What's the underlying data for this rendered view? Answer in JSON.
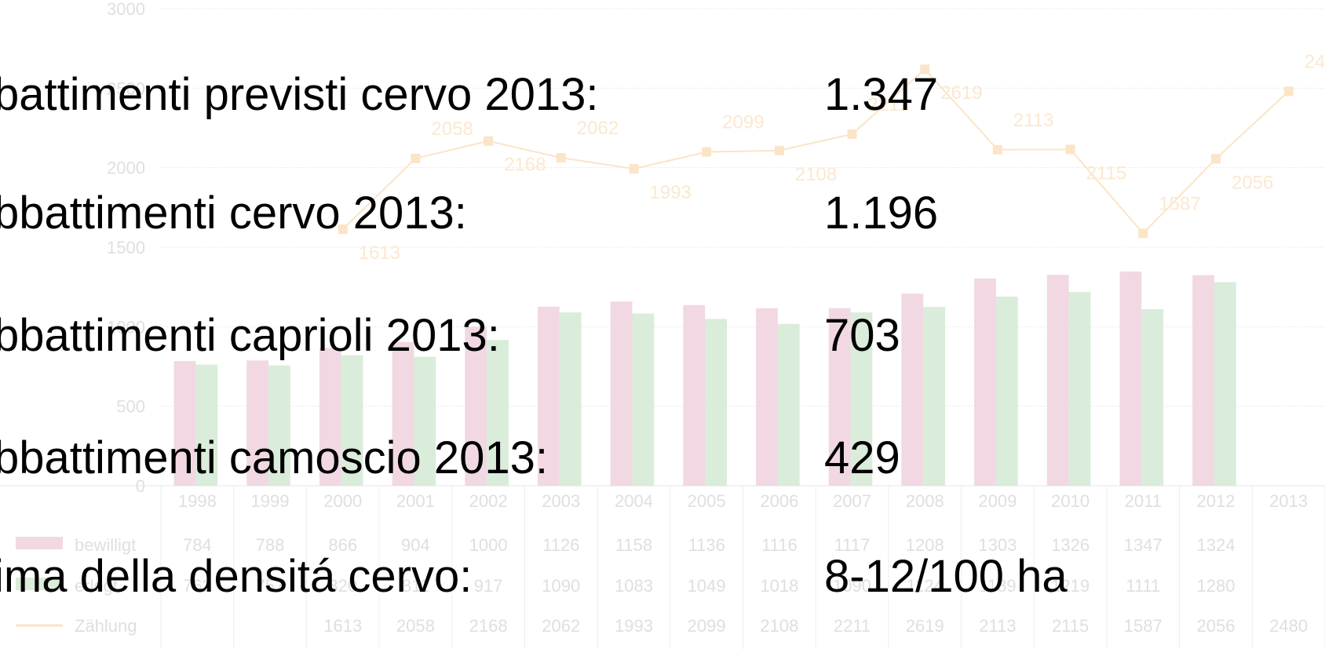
{
  "slide": {
    "lines": [
      {
        "label": "battimenti previsti cervo 2013:",
        "value": "1.347"
      },
      {
        "label": "bbattimenti cervo 2013:",
        "value": "1.196"
      },
      {
        "label": "bbattimenti caprioli 2013:",
        "value": "703"
      },
      {
        "label": "bbattimenti camoscio 2013:",
        "value": "429"
      },
      {
        "label": "ima della densitá cervo:",
        "value": "8-12/100 ha"
      }
    ]
  },
  "chart_data": {
    "type": "bar",
    "categories": [
      "1998",
      "1999",
      "2000",
      "2001",
      "2002",
      "2003",
      "2004",
      "2005",
      "2006",
      "2007",
      "2008",
      "2009",
      "2010",
      "2011",
      "2012",
      "2013"
    ],
    "series": [
      {
        "name": "bewilligt",
        "color": "#f0d4e0",
        "values": [
          784,
          788,
          866,
          904,
          1000,
          1126,
          1158,
          1136,
          1116,
          1117,
          1208,
          1303,
          1326,
          1347,
          1324,
          null
        ]
      },
      {
        "name": "erlegt",
        "color": "#d6ead6",
        "values": [
          762,
          757,
          820,
          811,
          917,
          1090,
          1083,
          1049,
          1018,
          1090,
          1124,
          1189,
          1219,
          1111,
          1280,
          null
        ]
      },
      {
        "name": "Zählung",
        "type": "line",
        "color": "#fbe2c2",
        "values": [
          null,
          null,
          1613,
          2058,
          2168,
          2062,
          1993,
          2099,
          2108,
          2211,
          2619,
          2113,
          2115,
          1587,
          2056,
          2480
        ]
      }
    ],
    "ylim": [
      0,
      3000
    ],
    "yticks": [
      0,
      500,
      1000,
      1500,
      2000,
      2500,
      3000
    ],
    "grid": true
  }
}
